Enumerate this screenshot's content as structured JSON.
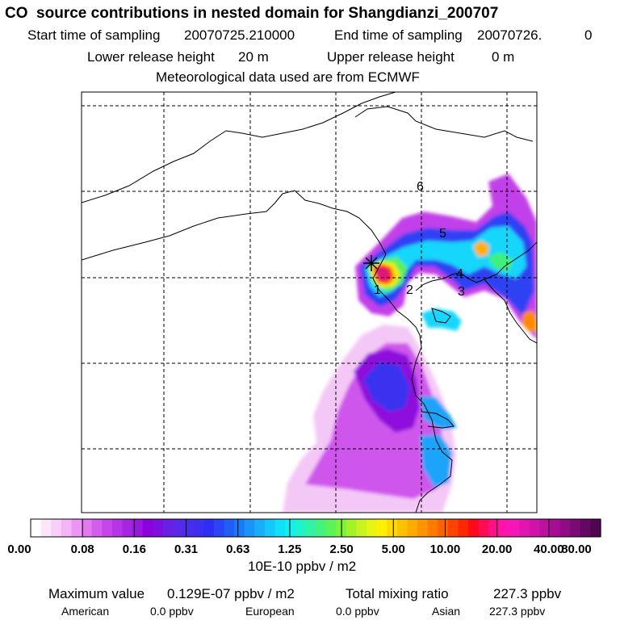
{
  "title": "CO  source contributions in nested domain for Shangdianzi_200707",
  "header": {
    "start_label": "Start time of sampling",
    "start_value": "20070725.210000",
    "end_label": "End time of sampling",
    "end_value": "20070726.",
    "end_suffix": "0",
    "lower_label": "Lower release height",
    "lower_value": "20 m",
    "upper_label": "Upper release height",
    "upper_value": "0 m",
    "met_line": "Meteorological data used are from ECMWF"
  },
  "chart_data": {
    "type": "heatmap",
    "title": "CO  source contributions in nested domain for Shangdianzi_200707",
    "grid": true,
    "grid_style": "dashed",
    "station_symbol": "*",
    "point_labels": [
      "1",
      "2",
      "3",
      "4",
      "5",
      "6"
    ],
    "colorbar": {
      "unit": "10E-10 ppbv / m2",
      "tick_labels": [
        "0.00",
        "0.08",
        "0.16",
        "0.31",
        "0.63",
        "1.25",
        "2.50",
        "5.00",
        "10.00",
        "20.00",
        "40.00",
        "80.00"
      ],
      "colors": [
        "#ffffff",
        "#fbe6fb",
        "#f7cff8",
        "#f2b5f6",
        "#eb96f4",
        "#e279f1",
        "#d45ded",
        "#c746ea",
        "#b733e6",
        "#a625e3",
        "#9a16e0",
        "#8b00dc",
        "#7d10e0",
        "#6a1fe4",
        "#5a28e8",
        "#4a2ceb",
        "#3c2ff0",
        "#2f2ef4",
        "#2a45f6",
        "#1f5ff8",
        "#1a79fa",
        "#1a94fb",
        "#19aefc",
        "#14c8fc",
        "#0fe0fb",
        "#12f0ee",
        "#1ef4cc",
        "#30f3a6",
        "#44f37e",
        "#5af358",
        "#7cf33c",
        "#a4f32a",
        "#c7f41c",
        "#e6f514",
        "#ffef00",
        "#ffd900",
        "#ffc200",
        "#ffab00",
        "#ff9300",
        "#ff7b00",
        "#ff6000",
        "#ff4400",
        "#ff2700",
        "#ff0a1a",
        "#ff0c55",
        "#ff1186",
        "#ff14ab",
        "#f516b8",
        "#e414b3",
        "#d012ab",
        "#bb10a0",
        "#a50e93",
        "#8f0c85",
        "#7a0a75",
        "#650864",
        "#500650"
      ]
    },
    "stats": {
      "max_label": "Maximum value",
      "max_value": "0.129E-07 ppbv / m2",
      "total_label": "Total mixing ratio",
      "total_value": "227.3 ppbv",
      "american_label": "American",
      "american_value": "0.0 ppbv",
      "european_label": "European",
      "european_value": "0.0 ppbv",
      "asian_label": "Asian",
      "asian_value": "227.3 ppbv"
    }
  }
}
